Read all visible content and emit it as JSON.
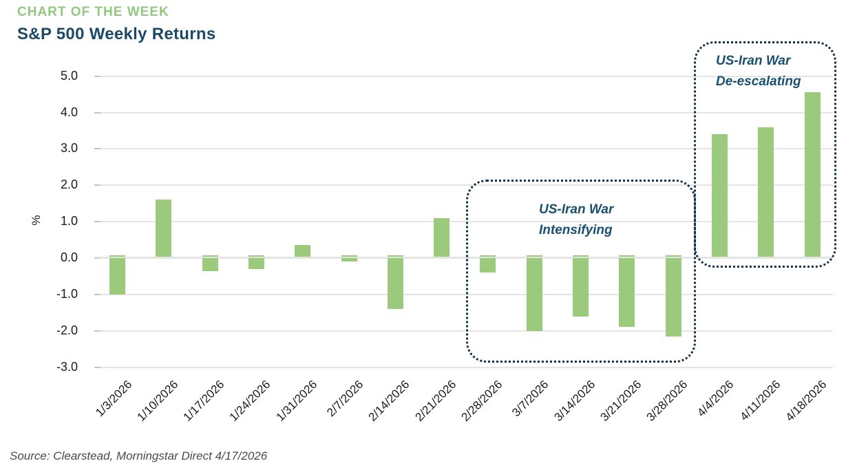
{
  "header": {
    "eyebrow": "CHART OF THE WEEK",
    "title": "S&P 500 Weekly Returns"
  },
  "colors": {
    "eyebrow_green": "#92C97E",
    "title_navy": "#1B4A68",
    "bar_green": "#9BCA7C",
    "gridline_gray": "#E4E4E4",
    "annotation_navy": "#19506F",
    "annotation_border": "#13304A"
  },
  "chart_data": {
    "type": "bar",
    "title": "S&P 500 Weekly Returns",
    "xlabel": "",
    "ylabel": "%",
    "ylim": [
      -3.0,
      5.0
    ],
    "yticks": [
      "5.0",
      "4.0",
      "3.0",
      "2.0",
      "1.0",
      "0.0",
      "-1.0",
      "-2.0",
      "-3.0"
    ],
    "ytick_values": [
      5.0,
      4.0,
      3.0,
      2.0,
      1.0,
      0.0,
      -1.0,
      -2.0,
      -3.0
    ],
    "grid": "horizontal",
    "legend": "none",
    "categories": [
      "1/3/2026",
      "1/10/2026",
      "1/17/2026",
      "1/24/2026",
      "1/31/2026",
      "2/7/2026",
      "2/14/2026",
      "2/21/2026",
      "2/28/2026",
      "3/7/2026",
      "3/14/2026",
      "3/21/2026",
      "3/28/2026",
      "4/4/2026",
      "4/11/2026",
      "4/18/2026"
    ],
    "values": [
      -1.0,
      1.6,
      -0.35,
      -0.3,
      0.35,
      -0.1,
      -1.4,
      1.1,
      -0.4,
      -2.0,
      -1.6,
      -1.9,
      -2.15,
      3.4,
      3.6,
      4.55
    ],
    "annotations": [
      {
        "line1": "US-Iran War",
        "line2": "Intensifying",
        "covers": [
          "2/28/2026",
          "3/7/2026",
          "3/14/2026",
          "3/21/2026",
          "3/28/2026"
        ]
      },
      {
        "line1": "US-Iran War",
        "line2": "De-escalating",
        "covers": [
          "4/4/2026",
          "4/11/2026",
          "4/18/2026"
        ]
      }
    ]
  },
  "footer": {
    "source": "Source: Clearstead, Morningstar Direct 4/17/2026"
  }
}
